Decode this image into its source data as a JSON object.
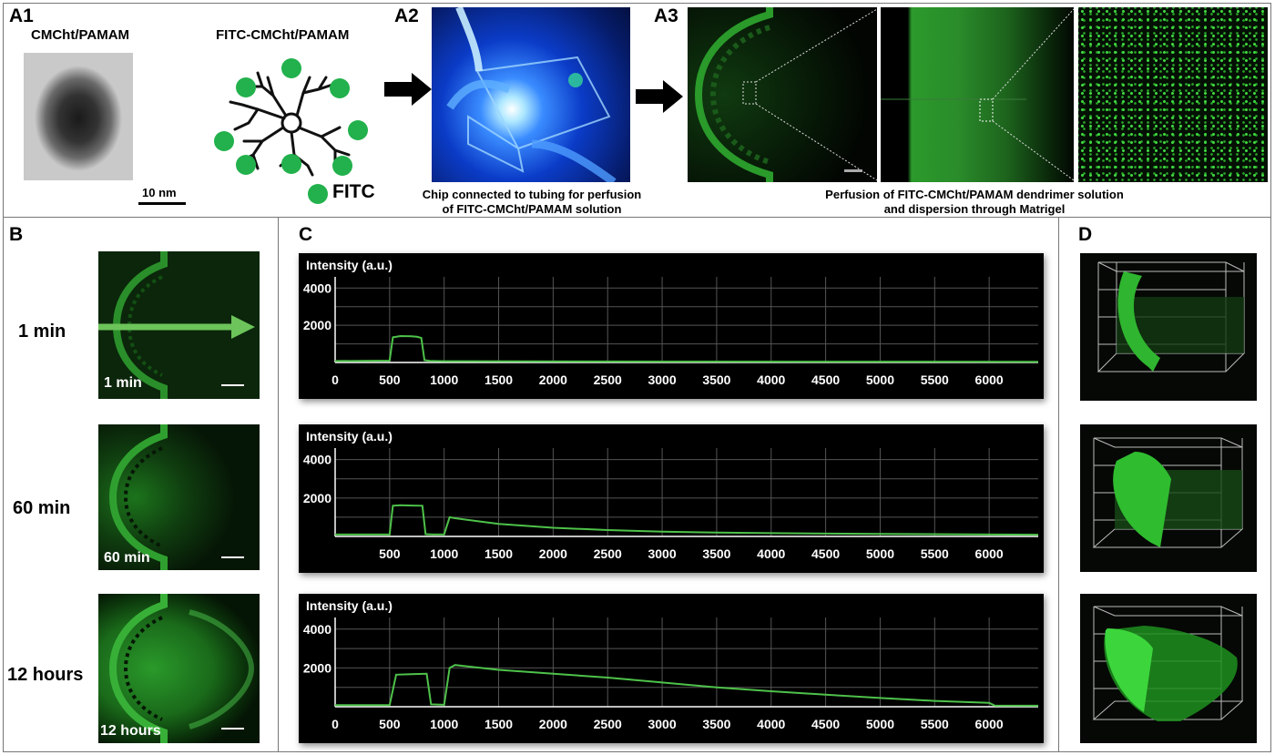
{
  "panels": {
    "a1": {
      "label": "A1",
      "left_title": "CMCht/PAMAM",
      "right_title": "FITC-CMCht/PAMAM",
      "scale_bar": "10 nm",
      "legend": "FITC",
      "dot_color": "#22b14c"
    },
    "a2": {
      "label": "A2",
      "caption_line1": "Chip connected  to tubing for perfusion",
      "caption_line2": "of  FITC-CMCht/PAMAM solution"
    },
    "a3": {
      "label": "A3",
      "caption_line1": "Perfusion of FITC-CMCht/PAMAM dendrimer solution",
      "caption_line2": "and dispersion through Matrigel"
    },
    "b": {
      "label": "B",
      "rows": [
        {
          "side": "1 min",
          "inner": "1 min"
        },
        {
          "side": "60 min",
          "inner": "60 min"
        },
        {
          "side": "12 hours",
          "inner": "12 hours"
        }
      ]
    },
    "c": {
      "label": "C"
    },
    "d": {
      "label": "D"
    }
  },
  "colors": {
    "fitc_green": "#33cc44",
    "trace_green": "#4ec24a",
    "panel_border": "#777777"
  },
  "chart_data": [
    {
      "type": "line",
      "title": "",
      "ylabel": "Intensity (a.u.)",
      "xlabel": "",
      "x_ticks": [
        0,
        500,
        1000,
        1500,
        2000,
        2500,
        3000,
        3500,
        4000,
        4500,
        5000,
        5500,
        6000
      ],
      "x_tick_labels": [
        "0",
        "500",
        "1000",
        "1500",
        "2000",
        "2500",
        "3000",
        "3500",
        "4000",
        "4500",
        "5000",
        "5500",
        "6000"
      ],
      "y_ticks": [
        2000,
        4000
      ],
      "y_tick_labels": [
        "2000",
        "4000"
      ],
      "xlim": [
        0,
        6450
      ],
      "ylim": [
        0,
        4600
      ],
      "grid": true,
      "series": [
        {
          "x": [
            0,
            500,
            530,
            600,
            700,
            750,
            790,
            820,
            870,
            1000,
            3000,
            6450
          ],
          "y": [
            80,
            100,
            1350,
            1420,
            1410,
            1380,
            1320,
            120,
            90,
            70,
            50,
            40
          ]
        }
      ]
    },
    {
      "type": "line",
      "title": "",
      "ylabel": "Intensity (a.u.)",
      "xlabel": "",
      "x_ticks": [
        500,
        1000,
        1500,
        2000,
        2500,
        3000,
        3500,
        4000,
        4500,
        5000,
        5500,
        6000
      ],
      "x_tick_labels": [
        "500",
        "1000",
        "1500",
        "2000",
        "2500",
        "3000",
        "3500",
        "4000",
        "4500",
        "5000",
        "5500",
        "6000"
      ],
      "y_ticks": [
        2000,
        4000
      ],
      "y_tick_labels": [
        "2000",
        "4000"
      ],
      "xlim": [
        0,
        6450
      ],
      "ylim": [
        0,
        4600
      ],
      "grid": true,
      "series": [
        {
          "x": [
            0,
            500,
            530,
            600,
            700,
            800,
            830,
            900,
            1000,
            1050,
            1100,
            1500,
            2000,
            2500,
            3000,
            3500,
            4000,
            5000,
            6000,
            6450
          ],
          "y": [
            100,
            100,
            1600,
            1620,
            1610,
            1600,
            120,
            100,
            110,
            1000,
            950,
            650,
            450,
            330,
            250,
            200,
            170,
            130,
            100,
            90
          ]
        }
      ]
    },
    {
      "type": "line",
      "title": "",
      "ylabel": "Intensity (a.u.)",
      "xlabel": "",
      "x_ticks": [
        0,
        500,
        1000,
        1500,
        2000,
        2500,
        3000,
        3500,
        4000,
        4500,
        5000,
        5500,
        6000
      ],
      "x_tick_labels": [
        "0",
        "500",
        "1000",
        "1500",
        "2000",
        "2500",
        "3000",
        "3500",
        "4000",
        "4500",
        "5000",
        "5500",
        "6000"
      ],
      "y_ticks": [
        2000,
        4000
      ],
      "y_tick_labels": [
        "2000",
        "4000"
      ],
      "xlim": [
        0,
        6450
      ],
      "ylim": [
        0,
        4600
      ],
      "grid": true,
      "series": [
        {
          "x": [
            0,
            500,
            560,
            700,
            840,
            880,
            1000,
            1050,
            1100,
            1500,
            2000,
            2500,
            3000,
            3500,
            4000,
            4500,
            5000,
            5500,
            6000,
            6050,
            6450
          ],
          "y": [
            80,
            80,
            1650,
            1680,
            1700,
            120,
            100,
            2000,
            2150,
            1900,
            1700,
            1500,
            1250,
            1000,
            800,
            620,
            450,
            300,
            200,
            60,
            50
          ]
        }
      ]
    }
  ]
}
